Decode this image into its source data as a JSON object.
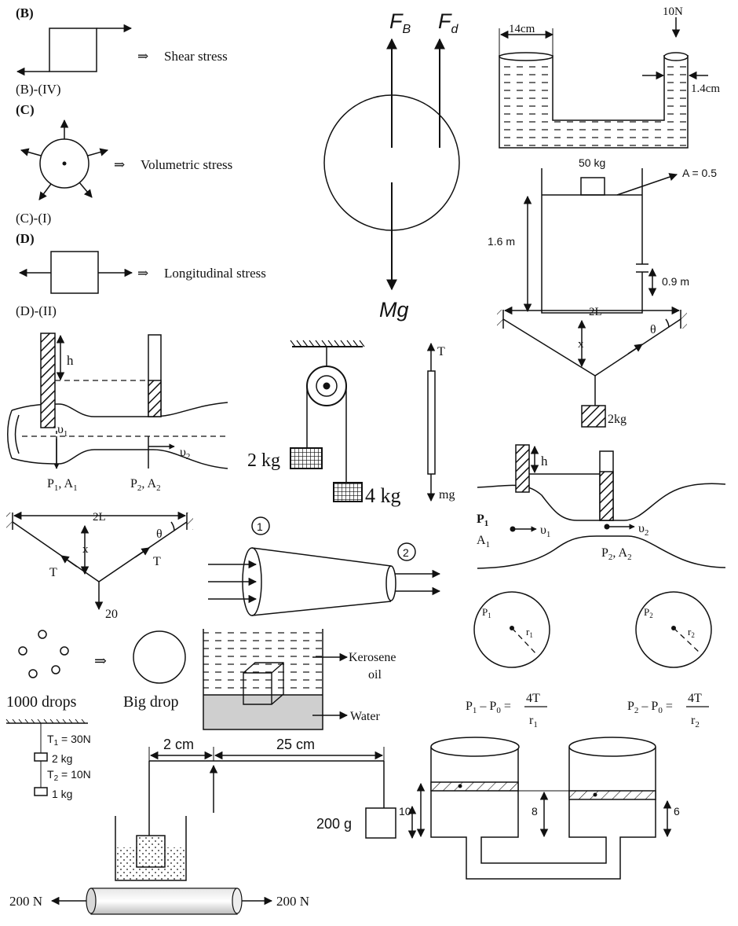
{
  "stress_types": {
    "b_tag": "(B)",
    "b_name": "Shear stress",
    "b_match": "(B)-(IV)",
    "c_tag": "(C)",
    "c_name": "Volumetric stress",
    "c_match": "(C)-(I)",
    "d_tag": "(D)",
    "d_name": "Longitudinal stress",
    "d_match": "(D)-(II)",
    "implies": "⇒"
  },
  "sphere_forces": {
    "buoyant": "F",
    "buoyant_sub": "B",
    "drag": "F",
    "drag_sub": "d",
    "weight": "Mg"
  },
  "u_tube_piston": {
    "left_width": "14cm",
    "force": "10N",
    "right_width": "1.4cm"
  },
  "tank": {
    "mass": "50 kg",
    "area": "A = 0.5",
    "height": "1.6 m",
    "hole_height": "0.9 m"
  },
  "string_top_right": {
    "span": "2L",
    "sag": "x",
    "angle": "θ",
    "mass": "2kg"
  },
  "venturi_left": {
    "head": "h",
    "v1": "υ",
    "v1_sub": "1",
    "v2": "υ",
    "v2_sub": "2",
    "p1": "P",
    "p1_sub": "1",
    "a1": ", A",
    "a1_sub": "1",
    "p2": "P",
    "p2_sub": "2",
    "a2": ", A",
    "a2_sub": "2"
  },
  "pulley": {
    "left_mass": "2 kg",
    "right_mass": "4 kg"
  },
  "rod_forces": {
    "tension": "T",
    "weight": "mg"
  },
  "venturi_right": {
    "head": "h",
    "p1": "P",
    "p1_sub": "1",
    "a1": "A",
    "a1_sub": "1",
    "v1": "υ",
    "v1_sub": "1",
    "v2": "υ",
    "v2_sub": "2",
    "p2": "P",
    "p2_sub": "2",
    "a2": ", A",
    "a2_sub": "2"
  },
  "string_mid_left": {
    "span": "2L",
    "sag": "x",
    "angle": "θ",
    "tension_left": "T",
    "tension_right": "T",
    "load": "20"
  },
  "nozzle": {
    "inlet": "1",
    "outlet": "2"
  },
  "bubbles": {
    "p1": "P",
    "p1_sub": "1",
    "r1": "r",
    "r1_sub": "1",
    "p2": "P",
    "p2_sub": "2",
    "r2": "r",
    "r2_sub": "2",
    "eq1_left": "P",
    "eq1_left_sub": "1",
    "eq1_mid": " – P",
    "eq1_mid_sub": "0",
    "eq1_eq": " =",
    "eq1_num": "4T",
    "eq1_den": "r",
    "eq1_den_sub": "1",
    "eq2_left": "P",
    "eq2_left_sub": "2",
    "eq2_mid": " – P",
    "eq2_mid_sub": "0",
    "eq2_eq": " =",
    "eq2_num": "4T",
    "eq2_den": "r",
    "eq2_den_sub": "2"
  },
  "drops": {
    "small_label": "1000 drops",
    "big_label": "Big drop",
    "implies": "⇒"
  },
  "beaker_layers": {
    "upper": "Kerosene",
    "upper2": "oil",
    "lower": "Water"
  },
  "hanging_masses": {
    "t1": "T",
    "t1_sub": "1",
    "t1_val": " = 30N",
    "m1": "2 kg",
    "t2": "T",
    "t2_sub": "2",
    "t2_val": " = 10N",
    "m2": "1 kg"
  },
  "balance": {
    "short_arm": "2 cm",
    "long_arm": "25 cm",
    "mass": "200 g",
    "height": "10"
  },
  "pistons": {
    "left_h": "10",
    "mid_h": "8",
    "right_h": "6"
  },
  "rod_tension": {
    "left_force": "200 N",
    "right_force": "200 N"
  }
}
